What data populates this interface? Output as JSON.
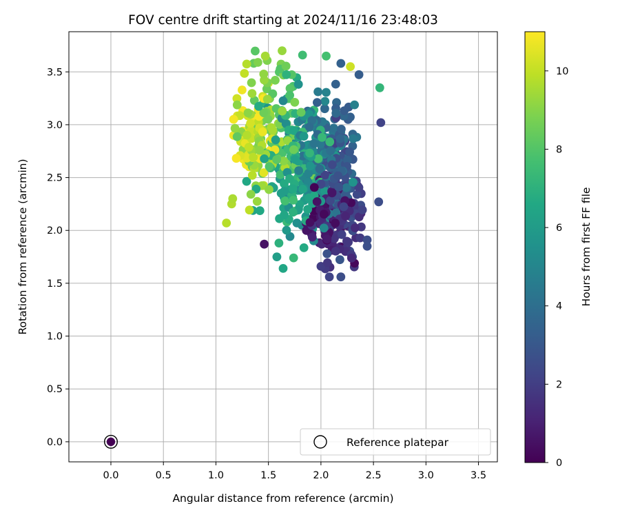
{
  "chart_data": {
    "type": "scatter",
    "title": "FOV centre drift starting at 2024/11/16 23:48:03",
    "xlabel": "Angular distance from reference (arcmin)",
    "ylabel": "Rotation from reference (arcmin)",
    "xlim": [
      -0.4,
      3.68
    ],
    "ylim": [
      -0.19,
      3.88
    ],
    "xticks": [
      0.0,
      0.5,
      1.0,
      1.5,
      2.0,
      2.5,
      3.0,
      3.5
    ],
    "yticks": [
      0.0,
      0.5,
      1.0,
      1.5,
      2.0,
      2.5,
      3.0,
      3.5
    ],
    "xtick_labels": [
      "0.0",
      "0.5",
      "1.0",
      "1.5",
      "2.0",
      "2.5",
      "3.0",
      "3.5"
    ],
    "ytick_labels": [
      "0.0",
      "0.5",
      "1.0",
      "1.5",
      "2.0",
      "2.5",
      "3.0",
      "3.5"
    ],
    "grid": true,
    "colormap": "viridis",
    "colorbar": {
      "label": "Hours from first FF file",
      "range": [
        0,
        11
      ],
      "ticks": [
        0,
        2,
        4,
        6,
        8,
        10
      ],
      "tick_labels": [
        "0",
        "2",
        "4",
        "6",
        "8",
        "10"
      ]
    },
    "legend": {
      "position": "lower-right",
      "label": "Reference platepar"
    },
    "reference_point": {
      "x": 0.0,
      "y": 0.0,
      "hours": 0
    },
    "series": [
      {
        "clusters": [
          {
            "hours": [
              0,
              1
            ],
            "center": [
              2.05,
              2.12
            ],
            "spread": [
              0.11,
              0.15
            ],
            "count": 70
          },
          {
            "hours": [
              1,
              2
            ],
            "center": [
              2.15,
              2.05
            ],
            "spread": [
              0.11,
              0.2
            ],
            "count": 75
          },
          {
            "hours": [
              2,
              3
            ],
            "center": [
              2.2,
              2.35
            ],
            "spread": [
              0.1,
              0.28
            ],
            "count": 80
          },
          {
            "hours": [
              3,
              4
            ],
            "center": [
              2.12,
              2.75
            ],
            "spread": [
              0.12,
              0.3
            ],
            "count": 75
          },
          {
            "hours": [
              4,
              5
            ],
            "center": [
              2.0,
              2.75
            ],
            "spread": [
              0.14,
              0.3
            ],
            "count": 70
          },
          {
            "hours": [
              5,
              6
            ],
            "center": [
              1.85,
              2.6
            ],
            "spread": [
              0.15,
              0.3
            ],
            "count": 70
          },
          {
            "hours": [
              6,
              7
            ],
            "center": [
              1.72,
              2.5
            ],
            "spread": [
              0.15,
              0.32
            ],
            "count": 70
          },
          {
            "hours": [
              7,
              8
            ],
            "center": [
              1.72,
              2.85
            ],
            "spread": [
              0.15,
              0.3
            ],
            "count": 60
          },
          {
            "hours": [
              8,
              9
            ],
            "center": [
              1.55,
              3.0
            ],
            "spread": [
              0.15,
              0.3
            ],
            "count": 60
          },
          {
            "hours": [
              9,
              10
            ],
            "center": [
              1.42,
              2.9
            ],
            "spread": [
              0.12,
              0.3
            ],
            "count": 60
          },
          {
            "hours": [
              10,
              11
            ],
            "center": [
              1.35,
              2.85
            ],
            "spread": [
              0.1,
              0.22
            ],
            "count": 50
          }
        ],
        "highlighted_points": [
          {
            "x": 1.1,
            "y": 2.07,
            "hours": 9.8
          },
          {
            "x": 1.15,
            "y": 2.25,
            "hours": 9.7
          },
          {
            "x": 1.16,
            "y": 2.3,
            "hours": 9.6
          },
          {
            "x": 1.63,
            "y": 3.7,
            "hours": 9.3
          },
          {
            "x": 2.05,
            "y": 3.65,
            "hours": 7.7
          },
          {
            "x": 1.4,
            "y": 3.59,
            "hours": 8.9
          },
          {
            "x": 2.28,
            "y": 3.55,
            "hours": 10.2
          },
          {
            "x": 2.19,
            "y": 3.58,
            "hours": 3.4
          },
          {
            "x": 2.56,
            "y": 3.35,
            "hours": 7.2
          },
          {
            "x": 2.57,
            "y": 3.02,
            "hours": 2.2
          },
          {
            "x": 2.55,
            "y": 2.27,
            "hours": 2.6
          },
          {
            "x": 2.44,
            "y": 1.91,
            "hours": 2.6
          },
          {
            "x": 2.44,
            "y": 1.85,
            "hours": 2.7
          },
          {
            "x": 2.3,
            "y": 1.75,
            "hours": 2.4
          },
          {
            "x": 2.19,
            "y": 1.56,
            "hours": 2.6
          },
          {
            "x": 2.08,
            "y": 1.56,
            "hours": 2.2
          },
          {
            "x": 2.0,
            "y": 1.66,
            "hours": 2.0
          },
          {
            "x": 1.64,
            "y": 1.64,
            "hours": 6.5
          },
          {
            "x": 1.74,
            "y": 1.74,
            "hours": 7.3
          },
          {
            "x": 1.58,
            "y": 1.75,
            "hours": 6.1
          },
          {
            "x": 1.46,
            "y": 1.87,
            "hours": 0.5
          },
          {
            "x": 1.6,
            "y": 1.88,
            "hours": 7.0
          },
          {
            "x": 2.2,
            "y": 1.84,
            "hours": 0.3
          }
        ]
      }
    ]
  }
}
